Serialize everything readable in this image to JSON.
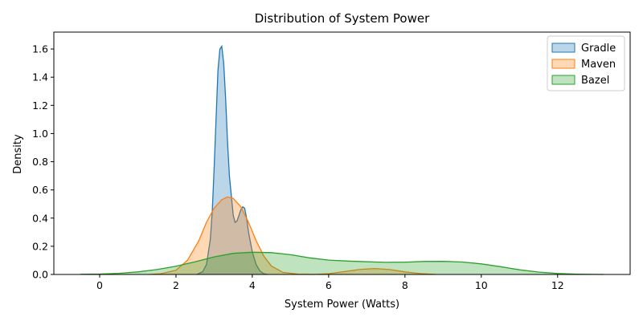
{
  "chart_data": {
    "type": "area",
    "subtype": "kde",
    "title": "Distribution of System Power",
    "xlabel": "System Power (Watts)",
    "ylabel": "Density",
    "xlim": [
      -1.2,
      13.9
    ],
    "ylim": [
      0,
      1.72
    ],
    "x_ticks": [
      0,
      2,
      4,
      6,
      8,
      10,
      12
    ],
    "y_ticks": [
      0.0,
      0.2,
      0.4,
      0.6,
      0.8,
      1.0,
      1.2,
      1.4,
      1.6
    ],
    "x_tick_labels": [
      "0",
      "2",
      "4",
      "6",
      "8",
      "10",
      "12"
    ],
    "y_tick_labels": [
      "0.0",
      "0.2",
      "0.4",
      "0.6",
      "0.8",
      "1.0",
      "1.2",
      "1.4",
      "1.6"
    ],
    "grid": false,
    "legend_position": "top-right",
    "series": [
      {
        "name": "Gradle",
        "color": "#1f77b4",
        "x": [
          2.55,
          2.7,
          2.8,
          2.9,
          2.95,
          3.0,
          3.05,
          3.1,
          3.15,
          3.2,
          3.25,
          3.3,
          3.35,
          3.4,
          3.5,
          3.55,
          3.6,
          3.65,
          3.7,
          3.75,
          3.8,
          3.85,
          3.9,
          4.0,
          4.1,
          4.2,
          4.3,
          4.4
        ],
        "y": [
          0.0,
          0.02,
          0.07,
          0.25,
          0.45,
          0.75,
          1.1,
          1.45,
          1.6,
          1.62,
          1.5,
          1.25,
          0.95,
          0.7,
          0.42,
          0.37,
          0.38,
          0.42,
          0.46,
          0.48,
          0.47,
          0.4,
          0.3,
          0.16,
          0.07,
          0.025,
          0.005,
          0.0
        ]
      },
      {
        "name": "Maven",
        "color": "#ff7f0e",
        "x": [
          1.3,
          1.6,
          2.0,
          2.3,
          2.6,
          2.8,
          3.0,
          3.2,
          3.35,
          3.5,
          3.7,
          3.9,
          4.1,
          4.3,
          4.5,
          4.8,
          5.2,
          5.6,
          6.0,
          6.4,
          6.8,
          7.2,
          7.6,
          8.0,
          8.4,
          8.8
        ],
        "y": [
          0.0,
          0.005,
          0.03,
          0.1,
          0.24,
          0.37,
          0.47,
          0.53,
          0.55,
          0.54,
          0.48,
          0.37,
          0.24,
          0.13,
          0.06,
          0.015,
          0.002,
          0.0,
          0.005,
          0.02,
          0.035,
          0.042,
          0.035,
          0.018,
          0.006,
          0.0
        ]
      },
      {
        "name": "Bazel",
        "color": "#2ca02c",
        "x": [
          -0.5,
          0.0,
          0.5,
          1.0,
          1.5,
          2.0,
          2.5,
          3.0,
          3.5,
          4.0,
          4.5,
          5.0,
          5.5,
          6.0,
          6.5,
          7.0,
          7.5,
          8.0,
          8.5,
          9.0,
          9.5,
          10.0,
          10.5,
          11.0,
          11.5,
          12.0,
          12.5,
          13.2
        ],
        "y": [
          0.001,
          0.003,
          0.008,
          0.018,
          0.035,
          0.058,
          0.09,
          0.125,
          0.15,
          0.158,
          0.155,
          0.14,
          0.118,
          0.102,
          0.095,
          0.09,
          0.086,
          0.087,
          0.092,
          0.093,
          0.088,
          0.075,
          0.055,
          0.033,
          0.017,
          0.007,
          0.002,
          0.0
        ]
      }
    ]
  }
}
